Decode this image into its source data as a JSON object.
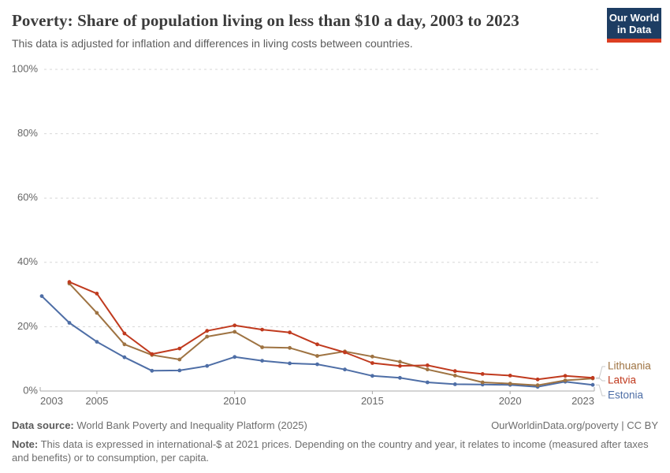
{
  "header": {
    "title": "Poverty: Share of population living on less than $10 a day, 2003 to 2023",
    "subtitle": "This data is adjusted for inflation and differences in living costs between countries.",
    "logo": {
      "line1": "Our World",
      "line2": "in Data"
    }
  },
  "chart_data": {
    "type": "line",
    "title": "Poverty: Share of population living on less than $10 a day, 2003 to 2023",
    "x": [
      2003,
      2004,
      2005,
      2006,
      2007,
      2008,
      2009,
      2010,
      2011,
      2012,
      2013,
      2014,
      2015,
      2016,
      2017,
      2018,
      2019,
      2020,
      2021,
      2022,
      2023
    ],
    "series": [
      {
        "name": "Estonia",
        "color": "#4e6ea6",
        "values": [
          29.5,
          21.2,
          15.3,
          10.5,
          6.3,
          6.4,
          7.8,
          10.6,
          9.4,
          8.6,
          8.3,
          6.7,
          4.7,
          4.1,
          2.7,
          2.1,
          2.0,
          1.9,
          1.3,
          2.9,
          1.9
        ]
      },
      {
        "name": "Lithuania",
        "color": "#9e7342",
        "values": [
          null,
          33.4,
          24.3,
          14.5,
          11.2,
          9.8,
          16.9,
          18.4,
          13.6,
          13.4,
          10.9,
          12.3,
          10.7,
          9.1,
          6.7,
          4.8,
          2.7,
          2.3,
          1.8,
          3.3,
          3.9
        ]
      },
      {
        "name": "Latvia",
        "color": "#c03a1e",
        "values": [
          null,
          33.9,
          30.3,
          17.9,
          11.5,
          13.2,
          18.7,
          20.4,
          19.1,
          18.2,
          14.5,
          12.0,
          8.7,
          7.8,
          8.0,
          6.2,
          5.3,
          4.8,
          3.6,
          4.7,
          4.1
        ]
      }
    ],
    "legend": [
      "Lithuania",
      "Latvia",
      "Estonia"
    ],
    "legend_position": "right",
    "grid": "dashed horizontal",
    "ylim": [
      0,
      100
    ],
    "yticks": [
      {
        "value": 0,
        "label": "0%"
      },
      {
        "value": 20,
        "label": "20%"
      },
      {
        "value": 40,
        "label": "40%"
      },
      {
        "value": 60,
        "label": "60%"
      },
      {
        "value": 80,
        "label": "80%"
      },
      {
        "value": 100,
        "label": "100%"
      }
    ],
    "xticks": [
      {
        "value": 2003,
        "label": "2003"
      },
      {
        "value": 2005,
        "label": "2005"
      },
      {
        "value": 2010,
        "label": "2010"
      },
      {
        "value": 2015,
        "label": "2015"
      },
      {
        "value": 2020,
        "label": "2020"
      },
      {
        "value": 2023,
        "label": "2023"
      }
    ],
    "colors": {
      "gridline": "#d7d7d7",
      "axis": "#a8a8a8",
      "tick_label": "#666666",
      "connector": "#c9c9c9"
    }
  },
  "footer": {
    "datasource_label": "Data source:",
    "datasource_text": " World Bank Poverty and Inequality Platform (2025)",
    "link": "OurWorldinData.org/poverty | CC BY",
    "note_label": "Note:",
    "note_text": " This data is expressed in international-$ at 2021 prices. Depending on the country and year, it relates to income (measured after taxes and benefits) or to consumption, per capita."
  }
}
